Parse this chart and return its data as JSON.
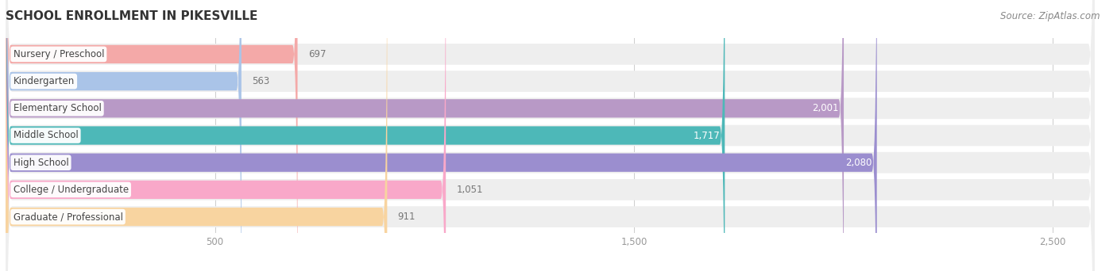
{
  "title": "SCHOOL ENROLLMENT IN PIKESVILLE",
  "source": "Source: ZipAtlas.com",
  "categories": [
    "Nursery / Preschool",
    "Kindergarten",
    "Elementary School",
    "Middle School",
    "High School",
    "College / Undergraduate",
    "Graduate / Professional"
  ],
  "values": [
    697,
    563,
    2001,
    1717,
    2080,
    1051,
    911
  ],
  "bar_colors": [
    "#f4a9a8",
    "#aac4e8",
    "#b899c6",
    "#4db8b8",
    "#9b8ecf",
    "#f9a8c9",
    "#f8d4a0"
  ],
  "bar_bg_color": "#ebebeb",
  "xlim": [
    0,
    2600
  ],
  "xticks": [
    500,
    1500,
    2500
  ],
  "background_color": "#ffffff",
  "title_fontsize": 11,
  "label_fontsize": 8.5,
  "value_fontsize": 8.5,
  "source_fontsize": 8.5,
  "bar_height": 0.68,
  "row_bg_color": "#eeeeee"
}
